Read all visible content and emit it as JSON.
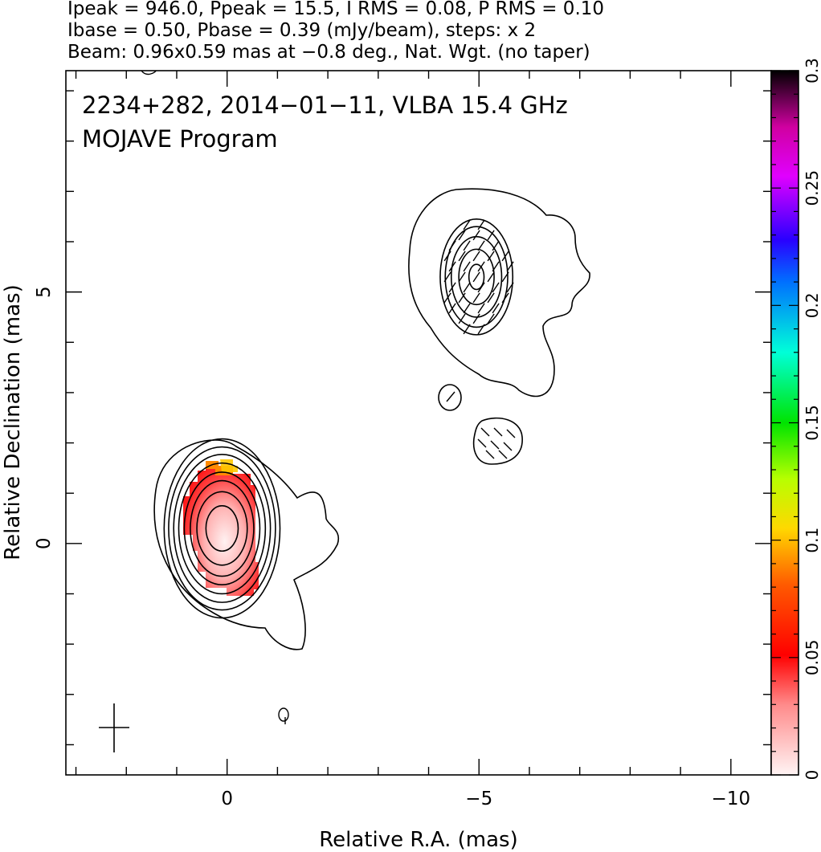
{
  "header": {
    "line1": "Ipeak = 946.0, Ppeak = 15.5, I RMS = 0.08, P RMS = 0.10",
    "line2": "Ibase = 0.50, Pbase = 0.39 (mJy/beam), steps: x 2",
    "line3": "Beam: 0.96x0.59 mas at −0.8 deg., Nat. Wgt. (no taper)"
  },
  "chart_data": {
    "type": "heatmap",
    "title": "2234+282, 2014−01−11, VLBA 15.4 GHz",
    "subtitle": "MOJAVE Program",
    "xlabel": "Relative R.A. (mas)",
    "ylabel": "Relative Declination (mas)",
    "xlim": [
      3.2,
      -10.8
    ],
    "ylim": [
      -4.6,
      9.4
    ],
    "x_ticks": [
      {
        "value": 0,
        "label": "0"
      },
      {
        "value": -5,
        "label": "−5"
      },
      {
        "value": -10,
        "label": "−10"
      }
    ],
    "y_ticks": [
      {
        "value": 0,
        "label": "0"
      },
      {
        "value": 5,
        "label": "5"
      }
    ],
    "colorbar": {
      "min": 0,
      "max": 0.3,
      "ticks": [
        {
          "value": 0,
          "label": "0"
        },
        {
          "value": 0.05,
          "label": "0.05"
        },
        {
          "value": 0.1,
          "label": "0.1"
        },
        {
          "value": 0.15,
          "label": "0.15"
        },
        {
          "value": 0.2,
          "label": "0.2"
        },
        {
          "value": 0.25,
          "label": "0.25"
        },
        {
          "value": 0.3,
          "label": "0.3"
        }
      ]
    },
    "core": {
      "x": 0.1,
      "y": 0.3,
      "contour_radii": [
        [
          0.32,
          0.45
        ],
        [
          0.5,
          0.73
        ],
        [
          0.63,
          0.95
        ],
        [
          0.75,
          1.12
        ],
        [
          0.86,
          1.3
        ],
        [
          0.96,
          1.47
        ],
        [
          1.06,
          1.62
        ],
        [
          1.15,
          1.78
        ]
      ],
      "polarization_peak": 0.105
    },
    "jet_knot": {
      "x": -4.95,
      "y": 5.3,
      "contour_radii": [
        [
          0.15,
          0.25
        ],
        [
          0.35,
          0.55
        ],
        [
          0.5,
          0.8
        ],
        [
          0.62,
          1.0
        ],
        [
          0.72,
          1.15
        ]
      ]
    },
    "beam": {
      "major": 0.96,
      "minor": 0.59,
      "pa": -0.8
    }
  }
}
